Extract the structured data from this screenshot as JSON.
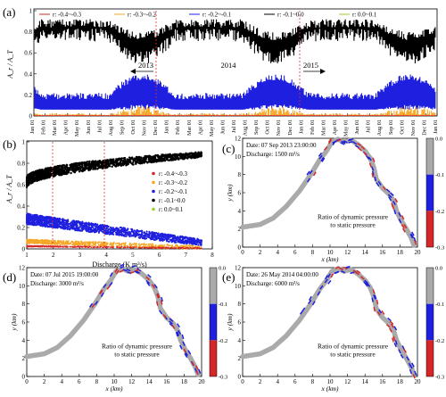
{
  "panel_labels": {
    "a": "(a)",
    "b": "(b)",
    "c": "(c)",
    "d": "(d)",
    "e": "(e)"
  },
  "colors": {
    "r_m04_m03": "#d62728",
    "r_m03_m02": "#f5a623",
    "r_m02_m01": "#1f1fe0",
    "r_m01_0": "#000000",
    "r_0_01": "#9acd32",
    "river": "#aaaaaa",
    "dashed": "#e03030"
  },
  "panel_a": {
    "ylabel": "A_r / A_T",
    "legend": [
      "r: -0.4~-0.3",
      "r: -0.3~-0.2",
      "r: -0.2~-0.1",
      "r: -0.1~0.0",
      "r: 0.0~0.1"
    ],
    "yticks": [
      "0",
      "0.2",
      "0.4",
      "0.6",
      "0.8",
      "1"
    ],
    "xticks": [
      "Jan 01",
      "Feb 01",
      "Mar 01",
      "Apr 01",
      "May 01",
      "Jun 01",
      "Jul 01",
      "Aug 01",
      "Sep 01",
      "Oct 01",
      "Nov 01",
      "Dec 01",
      "Jan 01",
      "Feb 01",
      "Mar 01",
      "Apr 01",
      "May 01",
      "Jun 01",
      "Jul 01",
      "Aug 01",
      "Sep 01",
      "Oct 01",
      "Nov 01",
      "Dec 01",
      "Jan 01",
      "Feb 01",
      "Mar 01",
      "Apr 01",
      "May 01",
      "Jun 01",
      "Jul 01",
      "Aug 01",
      "Sep 01",
      "Oct 01",
      "Nov 01",
      "Dec 01",
      "Jan 01"
    ],
    "year_labels": [
      "2013",
      "2014",
      "2015"
    ]
  },
  "panel_b": {
    "ylabel": "A_r / A_T",
    "xlabel": "Discharge (K m³/s)",
    "yticks": [
      "0",
      "0.2",
      "0.4",
      "0.6",
      "0.8",
      "1"
    ],
    "xticks": [
      "1",
      "2",
      "3",
      "4",
      "5",
      "6",
      "7",
      "8"
    ],
    "legend": [
      "r: -0.4~-0.3",
      "r: -0.3~-0.2",
      "r: -0.2~-0.1",
      "r: -0.1~0.0",
      "r: 0.0~0.1"
    ]
  },
  "map_common": {
    "ylabel": "y (km)",
    "xlabel": "x (km)",
    "yticks": [
      "0",
      "2",
      "4",
      "6",
      "8",
      "10",
      "12"
    ],
    "xticks": [
      "0",
      "2",
      "4",
      "6",
      "8",
      "10",
      "12",
      "14",
      "16",
      "18",
      "20"
    ],
    "colorbar_ticks": [
      "0.0",
      "-0.1",
      "-0.2",
      "-0.3"
    ],
    "ratio_line1": "Ratio of dynamic pressure",
    "ratio_line2": "to static pressure"
  },
  "panel_c": {
    "date": "Date: 07 Sep 2013 23:00:00",
    "discharge": "Discharge: 1500 m³/s"
  },
  "panel_d": {
    "date": "Date: 07 Jul 2015 19:00:00",
    "discharge": "Discharge: 3000 m³/s"
  },
  "panel_e": {
    "date": "Date: 26 May 2014 04:00:00",
    "discharge": "Discharge: 6000 m³/s"
  }
}
